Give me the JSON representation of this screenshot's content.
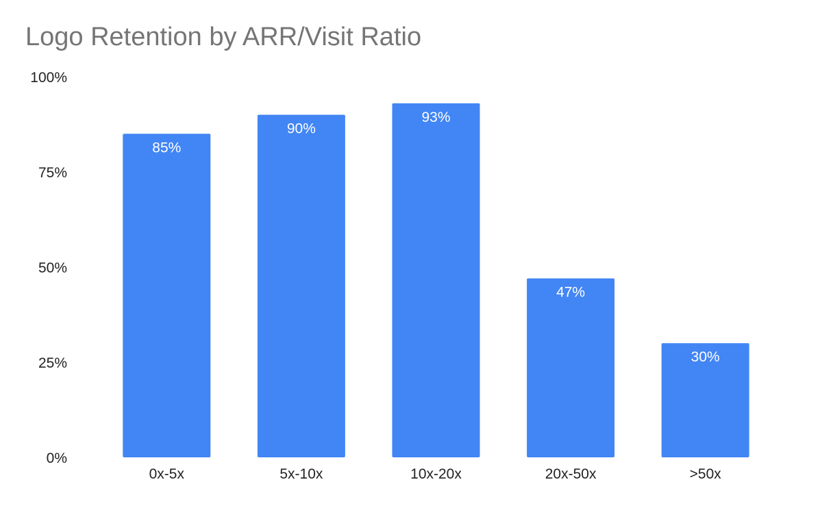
{
  "chart_data": {
    "type": "bar",
    "title": "Logo Retention by ARR/Visit Ratio",
    "xlabel": "",
    "ylabel": "",
    "categories": [
      "0x-5x",
      "5x-10x",
      "10x-20x",
      "20x-50x",
      ">50x"
    ],
    "values": [
      85,
      90,
      93,
      47,
      30
    ],
    "data_labels": [
      "85%",
      "90%",
      "93%",
      "47%",
      "30%"
    ],
    "ylim": [
      0,
      100
    ],
    "yticks": [
      0,
      25,
      50,
      75,
      100
    ],
    "ytick_labels": [
      "0%",
      "25%",
      "50%",
      "75%",
      "100%"
    ],
    "bar_color": "#4285f4",
    "grid": false,
    "legend": "none"
  }
}
